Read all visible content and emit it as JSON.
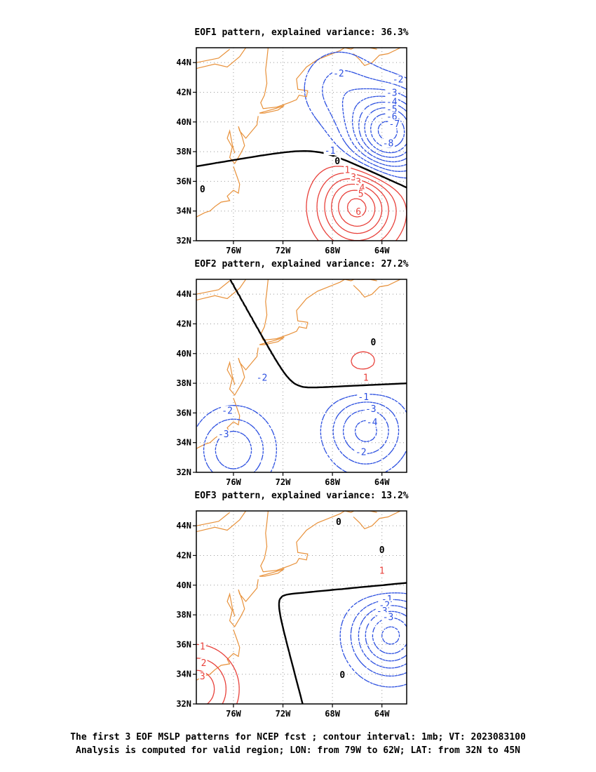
{
  "caption": {
    "line1": "The first 3 EOF MSLP patterns for NCEP fcst ; contour interval: 1mb; VT: 2023083100",
    "line2": "Analysis is computed for valid region; LON: from 79W to 62W; LAT: from 32N to 45N"
  },
  "colors": {
    "positive": "#e8403a",
    "negative": "#2b4fe0",
    "zero": "#000000",
    "coast": "#e8913a",
    "grid": "#999999"
  },
  "chart_data": [
    {
      "type": "contour",
      "title": "EOF1 pattern, explained variance: 36.3%",
      "xlim": [
        -79,
        -62
      ],
      "ylim": [
        32,
        45
      ],
      "x_ticks": [
        -76,
        -72,
        -68,
        -64
      ],
      "x_tick_labels": [
        "76W",
        "72W",
        "68W",
        "64W"
      ],
      "y_ticks": [
        32,
        34,
        36,
        38,
        40,
        42,
        44
      ],
      "y_tick_labels": [
        "32N",
        "34N",
        "36N",
        "38N",
        "40N",
        "42N",
        "44N"
      ],
      "grid": true,
      "centers": [
        {
          "lon": -66,
          "lat": 34.3,
          "value": 6.5
        },
        {
          "lon": -63.5,
          "lat": 39.3,
          "value": -8.5
        },
        {
          "lon": -67.5,
          "lat": 42.3,
          "value": -2.3
        }
      ],
      "contour_labels": [
        {
          "text": "-2",
          "lon": -67.5,
          "lat": 43.2
        },
        {
          "text": "-2",
          "lon": -62.7,
          "lat": 42.8
        },
        {
          "text": "-3",
          "lon": -63.2,
          "lat": 41.9
        },
        {
          "text": "-4",
          "lon": -63.2,
          "lat": 41.3
        },
        {
          "text": "-5",
          "lon": -63.2,
          "lat": 40.8
        },
        {
          "text": "-6",
          "lon": -63.2,
          "lat": 40.3
        },
        {
          "text": "-7",
          "lon": -63.0,
          "lat": 39.8
        },
        {
          "text": "-8",
          "lon": -63.5,
          "lat": 38.5
        },
        {
          "text": "-1",
          "lon": -68.2,
          "lat": 38.0
        },
        {
          "text": "0",
          "lon": -67.6,
          "lat": 37.3
        },
        {
          "text": "1",
          "lon": -66.8,
          "lat": 36.7
        },
        {
          "text": "3",
          "lon": -66.3,
          "lat": 36.2
        },
        {
          "text": "3",
          "lon": -65.9,
          "lat": 35.9
        },
        {
          "text": "4",
          "lon": -65.6,
          "lat": 35.5
        },
        {
          "text": "5",
          "lon": -65.7,
          "lat": 35.1
        },
        {
          "text": "6",
          "lon": -65.9,
          "lat": 33.9
        },
        {
          "text": "0",
          "lon": -78.5,
          "lat": 35.4
        }
      ]
    },
    {
      "type": "contour",
      "title": "EOF2 pattern, explained variance: 27.2%",
      "xlim": [
        -79,
        -62
      ],
      "ylim": [
        32,
        45
      ],
      "x_ticks": [
        -76,
        -72,
        -68,
        -64
      ],
      "x_tick_labels": [
        "76W",
        "72W",
        "68W",
        "64W"
      ],
      "y_ticks": [
        32,
        34,
        36,
        38,
        40,
        42,
        44
      ],
      "y_tick_labels": [
        "32N",
        "34N",
        "36N",
        "38N",
        "40N",
        "42N",
        "44N"
      ],
      "grid": true,
      "centers": [
        {
          "lon": -65.5,
          "lat": 38.8,
          "value": 1.4
        },
        {
          "lon": -65.3,
          "lat": 34.9,
          "value": -4.5
        },
        {
          "lon": -76,
          "lat": 33.5,
          "value": -3.8
        }
      ],
      "contour_labels": [
        {
          "text": "0",
          "lon": -64.7,
          "lat": 40.7
        },
        {
          "text": "1",
          "lon": -65.3,
          "lat": 38.3
        },
        {
          "text": "-1",
          "lon": -65.5,
          "lat": 37.0
        },
        {
          "text": "-3",
          "lon": -64.9,
          "lat": 36.2
        },
        {
          "text": "-4",
          "lon": -64.8,
          "lat": 35.3
        },
        {
          "text": "-2",
          "lon": -65.7,
          "lat": 33.3
        },
        {
          "text": "-2",
          "lon": -73.7,
          "lat": 38.3
        },
        {
          "text": "-2",
          "lon": -76.5,
          "lat": 36.1
        },
        {
          "text": "-3",
          "lon": -76.8,
          "lat": 34.5
        }
      ]
    },
    {
      "type": "contour",
      "title": "EOF3 pattern, explained variance: 13.2%",
      "xlim": [
        -79,
        -62
      ],
      "ylim": [
        32,
        45
      ],
      "x_ticks": [
        -76,
        -72,
        -68,
        -64
      ],
      "x_tick_labels": [
        "76W",
        "72W",
        "68W",
        "64W"
      ],
      "y_ticks": [
        32,
        34,
        36,
        38,
        40,
        42,
        44
      ],
      "y_tick_labels": [
        "32N",
        "34N",
        "36N",
        "38N",
        "40N",
        "42N",
        "44N"
      ],
      "grid": true,
      "centers": [
        {
          "lon": -63.7,
          "lat": 40.5,
          "value": 1.3
        },
        {
          "lon": -63.3,
          "lat": 36.7,
          "value": -6.5
        },
        {
          "lon": -79,
          "lat": 33,
          "value": 3.8
        }
      ],
      "contour_labels": [
        {
          "text": "0",
          "lon": -67.5,
          "lat": 44.2
        },
        {
          "text": "0",
          "lon": -64.0,
          "lat": 42.3
        },
        {
          "text": "1",
          "lon": -64.0,
          "lat": 40.9
        },
        {
          "text": "-1",
          "lon": -63.6,
          "lat": 39.0
        },
        {
          "text": "-2",
          "lon": -63.8,
          "lat": 38.6
        },
        {
          "text": "-3",
          "lon": -64.0,
          "lat": 38.2
        },
        {
          "text": "-3",
          "lon": -63.5,
          "lat": 37.8
        },
        {
          "text": "0",
          "lon": -67.2,
          "lat": 33.9
        },
        {
          "text": "1",
          "lon": -78.5,
          "lat": 35.8
        },
        {
          "text": "2",
          "lon": -78.4,
          "lat": 34.7
        },
        {
          "text": "3",
          "lon": -78.5,
          "lat": 33.8
        }
      ]
    }
  ]
}
